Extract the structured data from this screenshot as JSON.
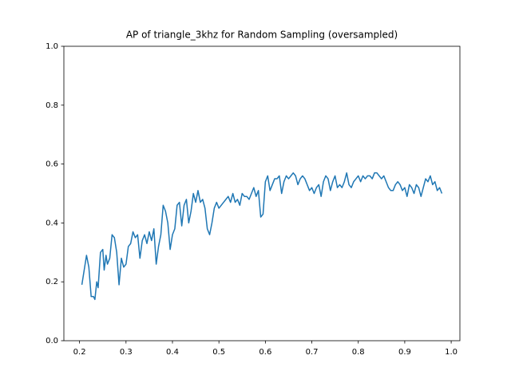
{
  "chart_data": {
    "type": "line",
    "title": "AP of triangle_3khz for Random Sampling (oversampled)",
    "xlim": [
      0.16625,
      1.01875
    ],
    "ylim": [
      0,
      1
    ],
    "xticks": [
      0.2,
      0.3,
      0.4,
      0.5,
      0.6,
      0.7,
      0.8,
      0.9,
      {
        "value": 1,
        "label": "1.0"
      }
    ],
    "yticks": [
      {
        "value": 0,
        "label": "0.0"
      },
      0.2,
      0.4,
      0.6,
      0.8,
      {
        "value": 1,
        "label": "1.0"
      }
    ],
    "series": [
      {
        "color": "#1f77b4",
        "x": [
          0.205,
          0.215,
          0.22,
          0.225,
          0.23,
          0.233,
          0.237,
          0.24,
          0.245,
          0.25,
          0.253,
          0.257,
          0.26,
          0.265,
          0.27,
          0.275,
          0.28,
          0.285,
          0.29,
          0.295,
          0.3,
          0.305,
          0.31,
          0.315,
          0.32,
          0.325,
          0.33,
          0.335,
          0.34,
          0.345,
          0.35,
          0.355,
          0.36,
          0.365,
          0.37,
          0.375,
          0.38,
          0.385,
          0.39,
          0.395,
          0.4,
          0.405,
          0.41,
          0.415,
          0.42,
          0.425,
          0.43,
          0.435,
          0.44,
          0.445,
          0.45,
          0.455,
          0.46,
          0.465,
          0.47,
          0.475,
          0.48,
          0.485,
          0.49,
          0.495,
          0.5,
          0.51,
          0.515,
          0.52,
          0.525,
          0.53,
          0.535,
          0.54,
          0.545,
          0.55,
          0.555,
          0.56,
          0.565,
          0.57,
          0.575,
          0.58,
          0.585,
          0.59,
          0.595,
          0.6,
          0.605,
          0.61,
          0.615,
          0.62,
          0.625,
          0.63,
          0.635,
          0.64,
          0.645,
          0.65,
          0.655,
          0.66,
          0.665,
          0.67,
          0.675,
          0.68,
          0.685,
          0.69,
          0.695,
          0.7,
          0.705,
          0.71,
          0.715,
          0.72,
          0.725,
          0.73,
          0.735,
          0.74,
          0.745,
          0.75,
          0.755,
          0.76,
          0.765,
          0.77,
          0.775,
          0.78,
          0.785,
          0.79,
          0.795,
          0.8,
          0.805,
          0.81,
          0.815,
          0.82,
          0.825,
          0.83,
          0.835,
          0.84,
          0.845,
          0.85,
          0.855,
          0.86,
          0.865,
          0.87,
          0.875,
          0.88,
          0.885,
          0.89,
          0.895,
          0.9,
          0.905,
          0.91,
          0.915,
          0.92,
          0.925,
          0.93,
          0.935,
          0.94,
          0.945,
          0.95,
          0.955,
          0.96,
          0.965,
          0.97,
          0.975,
          0.98
        ],
        "values": [
          0.19,
          0.29,
          0.25,
          0.15,
          0.15,
          0.14,
          0.2,
          0.18,
          0.3,
          0.31,
          0.24,
          0.29,
          0.26,
          0.28,
          0.36,
          0.35,
          0.3,
          0.19,
          0.28,
          0.25,
          0.26,
          0.32,
          0.33,
          0.37,
          0.35,
          0.36,
          0.28,
          0.34,
          0.36,
          0.33,
          0.37,
          0.34,
          0.38,
          0.26,
          0.32,
          0.36,
          0.46,
          0.44,
          0.4,
          0.31,
          0.36,
          0.38,
          0.46,
          0.47,
          0.39,
          0.46,
          0.48,
          0.4,
          0.44,
          0.5,
          0.47,
          0.51,
          0.47,
          0.48,
          0.45,
          0.38,
          0.36,
          0.4,
          0.45,
          0.47,
          0.45,
          0.47,
          0.48,
          0.49,
          0.47,
          0.5,
          0.47,
          0.48,
          0.46,
          0.5,
          0.49,
          0.49,
          0.48,
          0.5,
          0.52,
          0.49,
          0.51,
          0.42,
          0.43,
          0.54,
          0.56,
          0.51,
          0.53,
          0.55,
          0.55,
          0.56,
          0.5,
          0.54,
          0.56,
          0.55,
          0.56,
          0.57,
          0.56,
          0.53,
          0.55,
          0.56,
          0.55,
          0.53,
          0.51,
          0.52,
          0.5,
          0.52,
          0.53,
          0.49,
          0.54,
          0.56,
          0.55,
          0.51,
          0.54,
          0.56,
          0.52,
          0.53,
          0.52,
          0.54,
          0.57,
          0.53,
          0.52,
          0.54,
          0.55,
          0.56,
          0.54,
          0.56,
          0.55,
          0.56,
          0.56,
          0.55,
          0.57,
          0.57,
          0.56,
          0.55,
          0.56,
          0.54,
          0.52,
          0.51,
          0.51,
          0.53,
          0.54,
          0.53,
          0.51,
          0.52,
          0.49,
          0.53,
          0.52,
          0.5,
          0.53,
          0.52,
          0.49,
          0.52,
          0.55,
          0.54,
          0.56,
          0.53,
          0.54,
          0.51,
          0.52,
          0.5
        ]
      }
    ]
  }
}
